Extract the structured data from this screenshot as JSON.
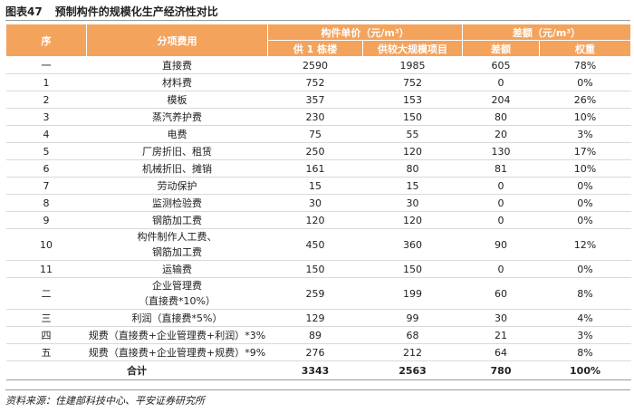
{
  "header": {
    "figure": "图表47",
    "title": "预制构件的规模化生产经济性对比"
  },
  "table": {
    "columns": [
      "序",
      "分项费用",
      "构件单价（元/m³）",
      "供 1 栋楼",
      "供较大规模项目",
      "差额（元/m³）",
      "差额",
      "权重"
    ],
    "rows": [
      [
        "一",
        "直接费",
        "2590",
        "1985",
        "605",
        "78%"
      ],
      [
        "1",
        "材料费",
        "752",
        "752",
        "0",
        "0%"
      ],
      [
        "2",
        "模板",
        "357",
        "153",
        "204",
        "26%"
      ],
      [
        "3",
        "蒸汽养护费",
        "230",
        "150",
        "80",
        "10%"
      ],
      [
        "4",
        "电费",
        "75",
        "55",
        "20",
        "3%"
      ],
      [
        "5",
        "厂房折旧、租赁",
        "250",
        "120",
        "130",
        "17%"
      ],
      [
        "6",
        "机械折旧、摊销",
        "161",
        "80",
        "81",
        "10%"
      ],
      [
        "7",
        "劳动保护",
        "15",
        "15",
        "0",
        "0%"
      ],
      [
        "8",
        "监测检验费",
        "30",
        "30",
        "0",
        "0%"
      ],
      [
        "9",
        "钢筋加工费",
        "120",
        "120",
        "0",
        "0%"
      ],
      [
        "10",
        "构件制作人工费、\n钢筋加工费",
        "450",
        "360",
        "90",
        "12%"
      ],
      [
        "11",
        "运输费",
        "150",
        "150",
        "0",
        "0%"
      ],
      [
        "二",
        "企业管理费\n（直接费*10%）",
        "259",
        "199",
        "60",
        "8%"
      ],
      [
        "三",
        "利润（直接费*5%）",
        "129",
        "99",
        "30",
        "4%"
      ],
      [
        "四",
        "规费（直接费+企业管理费+利润）*3%",
        "89",
        "68",
        "21",
        "3%"
      ],
      [
        "五",
        "规费（直接费+企业管理费+规费）*9%",
        "276",
        "212",
        "64",
        "8%"
      ]
    ],
    "total": [
      "合计",
      "3343",
      "2563",
      "780",
      "100%"
    ]
  },
  "source": "资料来源：住建部科技中心、平安证券研究所"
}
